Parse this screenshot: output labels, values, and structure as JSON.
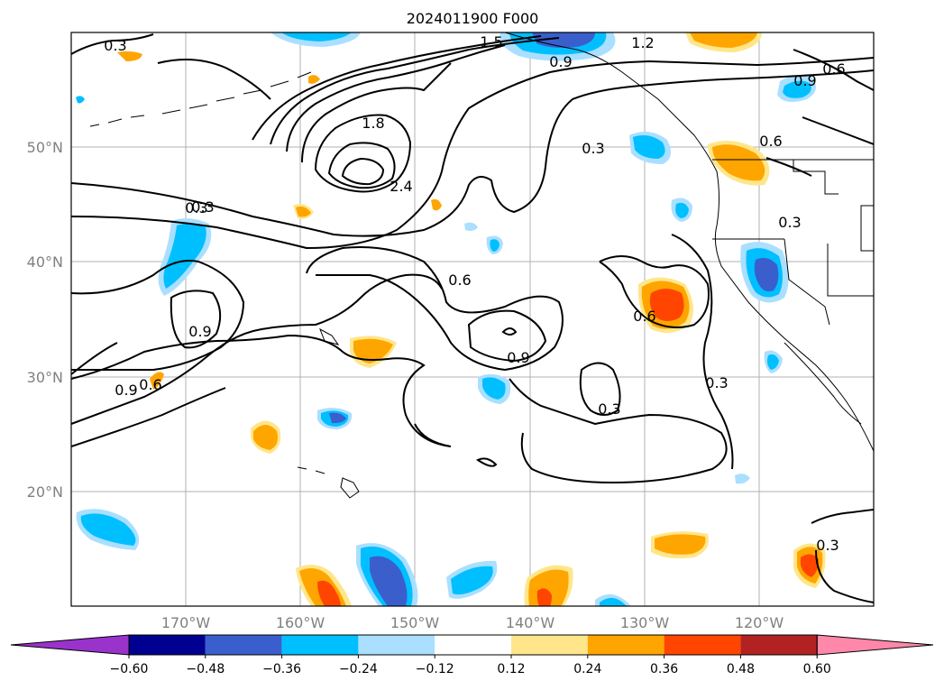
{
  "title": "2024011900 F000",
  "lat_labels": [
    "50°N",
    "40°N",
    "30°N",
    "20°N"
  ],
  "lon_labels": [
    "170°W",
    "160°W",
    "150°W",
    "140°W",
    "130°W",
    "120°W"
  ],
  "colorbar": {
    "colors": [
      "#9933cc",
      "#000090",
      "#3a5fcd",
      "#00bfff",
      "#aadfff",
      "#ffffff",
      "#ffe68a",
      "#ffa500",
      "#ff4500",
      "#b22222",
      "#ff88aa"
    ],
    "tick_labels": [
      "-0.60",
      "-0.48",
      "-0.36",
      "-0.24",
      "-0.12",
      "0.12",
      "0.24",
      "0.36",
      "0.48",
      "0.60"
    ]
  },
  "contour_labels": [
    "0.3",
    "0.3",
    "1.5",
    "1.2",
    "0.9",
    "0.6",
    "0.9",
    "1.8",
    "2.4",
    "0.3",
    "0.6",
    "0.3",
    "0.3",
    "0.6",
    "0.9",
    "0.6",
    "0.9",
    "0.9",
    "0.6",
    "0.3",
    "0.3",
    "0.3"
  ]
}
